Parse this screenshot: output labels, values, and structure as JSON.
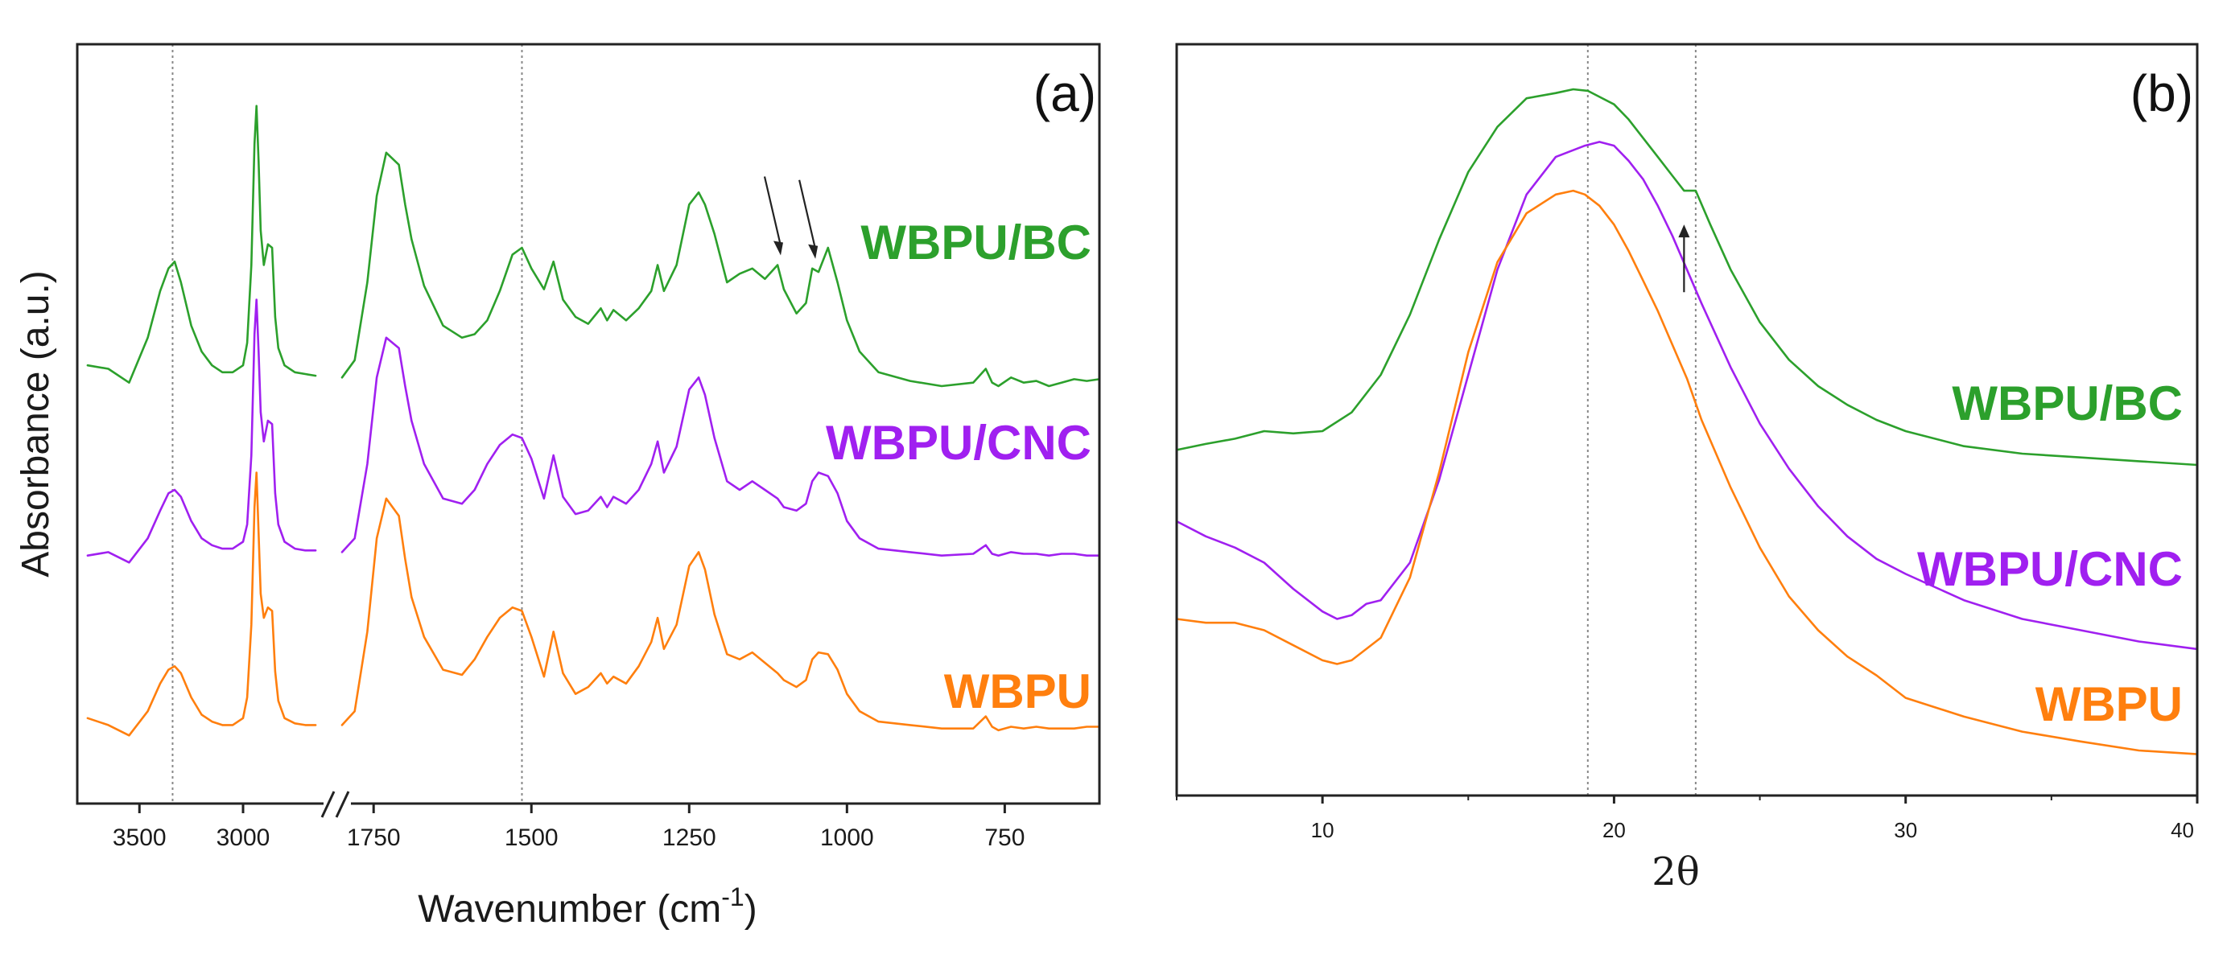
{
  "colors": {
    "WBPU": "#ff7f0e",
    "WBPU/CNC": "#a020f0",
    "WBPU/BC": "#2ca02c"
  },
  "chart_data": [
    {
      "id": "a",
      "type": "line",
      "panel_label": "(a)",
      "title": "",
      "xlabel_main": "Wavenumber (cm",
      "xlabel_sup": "-1",
      "xlabel_end": ")",
      "ylabel": "Absorbance (a.u.)",
      "x_reversed": true,
      "axis_break": true,
      "x_segments": [
        {
          "xlim": [
            3800,
            2600
          ],
          "ticks": [
            3500,
            3000
          ],
          "tick_labels": [
            "3500",
            "3000"
          ]
        },
        {
          "xlim": [
            1800,
            600
          ],
          "ticks": [
            1750,
            1500,
            1250,
            1000,
            750
          ],
          "tick_labels": [
            "1750",
            "1500",
            "1250",
            "1000",
            "750"
          ]
        }
      ],
      "reference_lines": [
        3340,
        1515
      ],
      "series": [
        {
          "name": "WBPU/BC",
          "label": "WBPU/BC",
          "offset": 2.0,
          "seg1": {
            "x": [
              3750,
              3650,
              3550,
              3460,
              3400,
              3360,
              3330,
              3300,
              3250,
              3200,
              3150,
              3100,
              3050,
              3000,
              2980,
              2960,
              2945,
              2935,
              2925,
              2915,
              2900,
              2880,
              2860,
              2845,
              2830,
              2800,
              2750,
              2700,
              2650
            ],
            "y": [
              0.12,
              0.1,
              0.02,
              0.28,
              0.55,
              0.68,
              0.72,
              0.6,
              0.35,
              0.2,
              0.12,
              0.08,
              0.08,
              0.12,
              0.25,
              0.7,
              1.4,
              1.62,
              1.3,
              0.9,
              0.7,
              0.82,
              0.8,
              0.4,
              0.22,
              0.12,
              0.08,
              0.07,
              0.06
            ]
          },
          "seg2": {
            "x": [
              1800,
              1780,
              1760,
              1745,
              1730,
              1710,
              1700,
              1690,
              1670,
              1640,
              1610,
              1590,
              1570,
              1550,
              1530,
              1515,
              1500,
              1480,
              1465,
              1450,
              1430,
              1410,
              1390,
              1380,
              1370,
              1350,
              1330,
              1310,
              1300,
              1290,
              1270,
              1250,
              1235,
              1225,
              1210,
              1190,
              1170,
              1150,
              1130,
              1110,
              1100,
              1080,
              1065,
              1055,
              1045,
              1030,
              1015,
              1000,
              980,
              950,
              900,
              850,
              800,
              780,
              770,
              760,
              740,
              720,
              700,
              680,
              660,
              640,
              620,
              600
            ],
            "y": [
              0.05,
              0.15,
              0.6,
              1.1,
              1.35,
              1.28,
              1.05,
              0.85,
              0.58,
              0.35,
              0.28,
              0.3,
              0.38,
              0.55,
              0.76,
              0.8,
              0.68,
              0.56,
              0.72,
              0.5,
              0.4,
              0.36,
              0.45,
              0.38,
              0.44,
              0.38,
              0.45,
              0.55,
              0.7,
              0.55,
              0.7,
              1.05,
              1.12,
              1.05,
              0.88,
              0.6,
              0.65,
              0.68,
              0.62,
              0.7,
              0.56,
              0.42,
              0.48,
              0.68,
              0.66,
              0.8,
              0.6,
              0.38,
              0.2,
              0.08,
              0.03,
              0.0,
              0.02,
              0.1,
              0.02,
              0.0,
              0.05,
              0.02,
              0.03,
              0.0,
              0.02,
              0.04,
              0.03,
              0.04
            ]
          }
        },
        {
          "name": "WBPU/CNC",
          "label": "WBPU/CNC",
          "offset": 1.0,
          "seg1": {
            "x": [
              3750,
              3650,
              3550,
              3460,
              3400,
              3360,
              3330,
              3300,
              3250,
              3200,
              3150,
              3100,
              3050,
              3000,
              2980,
              2960,
              2945,
              2935,
              2925,
              2915,
              2900,
              2880,
              2860,
              2845,
              2830,
              2800,
              2750,
              2700,
              2650
            ],
            "y": [
              0.02,
              0.04,
              -0.02,
              0.12,
              0.28,
              0.38,
              0.4,
              0.36,
              0.22,
              0.12,
              0.08,
              0.06,
              0.06,
              0.1,
              0.2,
              0.6,
              1.3,
              1.5,
              1.2,
              0.85,
              0.68,
              0.8,
              0.78,
              0.38,
              0.2,
              0.1,
              0.06,
              0.05,
              0.05
            ]
          },
          "seg2": {
            "x": [
              1800,
              1780,
              1760,
              1745,
              1730,
              1710,
              1700,
              1690,
              1670,
              1640,
              1610,
              1590,
              1570,
              1550,
              1530,
              1515,
              1500,
              1480,
              1465,
              1450,
              1430,
              1410,
              1390,
              1380,
              1370,
              1350,
              1330,
              1310,
              1300,
              1290,
              1270,
              1250,
              1235,
              1225,
              1210,
              1190,
              1170,
              1150,
              1130,
              1110,
              1100,
              1080,
              1065,
              1055,
              1045,
              1030,
              1015,
              1000,
              980,
              950,
              900,
              850,
              800,
              780,
              770,
              760,
              740,
              720,
              700,
              680,
              660,
              640,
              620,
              600
            ],
            "y": [
              0.04,
              0.12,
              0.55,
              1.05,
              1.28,
              1.22,
              1.0,
              0.8,
              0.55,
              0.35,
              0.32,
              0.4,
              0.55,
              0.66,
              0.72,
              0.7,
              0.58,
              0.35,
              0.6,
              0.36,
              0.26,
              0.28,
              0.36,
              0.3,
              0.36,
              0.32,
              0.4,
              0.55,
              0.68,
              0.5,
              0.65,
              0.98,
              1.05,
              0.95,
              0.7,
              0.45,
              0.4,
              0.45,
              0.4,
              0.35,
              0.3,
              0.28,
              0.32,
              0.45,
              0.5,
              0.48,
              0.38,
              0.22,
              0.12,
              0.06,
              0.04,
              0.02,
              0.03,
              0.08,
              0.03,
              0.02,
              0.04,
              0.03,
              0.03,
              0.02,
              0.03,
              0.03,
              0.02,
              0.02
            ]
          }
        },
        {
          "name": "WBPU",
          "label": "WBPU",
          "offset": 0.0,
          "seg1": {
            "x": [
              3750,
              3650,
              3550,
              3460,
              3400,
              3360,
              3330,
              3300,
              3250,
              3200,
              3150,
              3100,
              3050,
              3000,
              2980,
              2960,
              2945,
              2935,
              2925,
              2915,
              2900,
              2880,
              2860,
              2845,
              2830,
              2800,
              2750,
              2700,
              2650
            ],
            "y": [
              0.08,
              0.04,
              -0.02,
              0.12,
              0.28,
              0.36,
              0.38,
              0.34,
              0.2,
              0.1,
              0.06,
              0.04,
              0.04,
              0.08,
              0.2,
              0.62,
              1.3,
              1.5,
              1.15,
              0.8,
              0.66,
              0.72,
              0.7,
              0.35,
              0.18,
              0.08,
              0.05,
              0.04,
              0.04
            ]
          },
          "seg2": {
            "x": [
              1800,
              1780,
              1760,
              1745,
              1730,
              1710,
              1700,
              1690,
              1670,
              1640,
              1610,
              1590,
              1570,
              1550,
              1530,
              1515,
              1500,
              1480,
              1465,
              1450,
              1430,
              1410,
              1390,
              1380,
              1370,
              1350,
              1330,
              1310,
              1300,
              1290,
              1270,
              1250,
              1235,
              1225,
              1210,
              1190,
              1170,
              1150,
              1130,
              1110,
              1100,
              1080,
              1065,
              1055,
              1045,
              1030,
              1015,
              1000,
              980,
              950,
              900,
              850,
              800,
              780,
              770,
              760,
              740,
              720,
              700,
              680,
              660,
              640,
              620,
              600
            ],
            "y": [
              0.04,
              0.12,
              0.58,
              1.12,
              1.35,
              1.25,
              1.0,
              0.78,
              0.55,
              0.36,
              0.33,
              0.42,
              0.55,
              0.66,
              0.72,
              0.7,
              0.55,
              0.32,
              0.58,
              0.34,
              0.22,
              0.26,
              0.34,
              0.28,
              0.32,
              0.28,
              0.38,
              0.52,
              0.66,
              0.48,
              0.62,
              0.96,
              1.04,
              0.94,
              0.68,
              0.45,
              0.42,
              0.46,
              0.4,
              0.34,
              0.3,
              0.26,
              0.3,
              0.42,
              0.46,
              0.45,
              0.36,
              0.22,
              0.12,
              0.06,
              0.04,
              0.02,
              0.02,
              0.09,
              0.03,
              0.01,
              0.03,
              0.02,
              0.03,
              0.02,
              0.02,
              0.02,
              0.03,
              0.03
            ]
          }
        }
      ],
      "annotations": [
        {
          "type": "arrow-down",
          "x": 1105,
          "series": "WBPU/BC"
        },
        {
          "type": "arrow-down",
          "x": 1050,
          "series": "WBPU/BC"
        }
      ]
    },
    {
      "id": "b",
      "type": "line",
      "panel_label": "(b)",
      "title": "",
      "xlabel": "2θ",
      "ylabel": "",
      "xlim": [
        5,
        40
      ],
      "ylim": [
        0,
        10
      ],
      "x_ticks": [
        10,
        20,
        30,
        40
      ],
      "tick_labels": [
        "10",
        "20",
        "30",
        "40"
      ],
      "reference_lines": [
        19.1,
        22.8
      ],
      "series": [
        {
          "name": "WBPU/BC",
          "label": "WBPU/BC",
          "x": [
            5,
            6,
            7,
            8,
            9,
            10,
            11,
            12,
            13,
            14,
            15,
            16,
            17,
            18,
            18.6,
            19.1,
            19.5,
            20,
            20.5,
            21,
            21.5,
            22,
            22.4,
            22.8,
            23.3,
            24,
            25,
            26,
            27,
            28,
            29,
            30,
            32,
            34,
            36,
            38,
            40
          ],
          "y": [
            4.6,
            4.68,
            4.75,
            4.85,
            4.82,
            4.85,
            5.1,
            5.6,
            6.4,
            7.4,
            8.3,
            8.9,
            9.28,
            9.35,
            9.4,
            9.38,
            9.3,
            9.2,
            9.0,
            8.75,
            8.5,
            8.25,
            8.05,
            8.05,
            7.6,
            7.0,
            6.3,
            5.8,
            5.45,
            5.2,
            5.0,
            4.85,
            4.65,
            4.55,
            4.5,
            4.45,
            4.4
          ]
        },
        {
          "name": "WBPU/CNC",
          "label": "WBPU/CNC",
          "x": [
            5,
            6,
            7,
            8,
            9,
            10,
            10.5,
            11,
            11.5,
            12,
            13,
            14,
            15,
            16,
            17,
            18,
            19,
            19.5,
            20,
            20.5,
            21,
            21.5,
            22,
            22.5,
            23,
            24,
            25,
            26,
            27,
            28,
            29,
            30,
            32,
            34,
            36,
            38,
            40
          ],
          "y": [
            3.65,
            3.45,
            3.3,
            3.1,
            2.75,
            2.45,
            2.35,
            2.4,
            2.55,
            2.6,
            3.1,
            4.2,
            5.6,
            7.0,
            8.0,
            8.5,
            8.65,
            8.7,
            8.65,
            8.45,
            8.2,
            7.85,
            7.45,
            7.0,
            6.55,
            5.7,
            4.95,
            4.35,
            3.85,
            3.45,
            3.15,
            2.95,
            2.6,
            2.35,
            2.2,
            2.05,
            1.95
          ]
        },
        {
          "name": "WBPU",
          "label": "WBPU",
          "x": [
            5,
            6,
            7,
            8,
            9,
            10,
            10.5,
            11,
            12,
            13,
            14,
            15,
            16,
            17,
            18,
            18.6,
            19,
            19.5,
            20,
            20.5,
            21,
            21.5,
            22,
            22.5,
            23,
            24,
            25,
            26,
            27,
            28,
            29,
            30,
            32,
            34,
            36,
            38,
            40
          ],
          "y": [
            2.35,
            2.3,
            2.3,
            2.2,
            2.0,
            1.8,
            1.75,
            1.8,
            2.1,
            2.9,
            4.3,
            5.9,
            7.1,
            7.75,
            8.0,
            8.05,
            8.0,
            7.85,
            7.6,
            7.25,
            6.85,
            6.45,
            6.0,
            5.55,
            5.0,
            4.1,
            3.3,
            2.65,
            2.2,
            1.85,
            1.6,
            1.3,
            1.05,
            0.85,
            0.72,
            0.6,
            0.55
          ]
        }
      ],
      "annotations": [
        {
          "type": "arrow-up",
          "x": 22.4,
          "series": "WBPU/BC"
        }
      ]
    }
  ]
}
